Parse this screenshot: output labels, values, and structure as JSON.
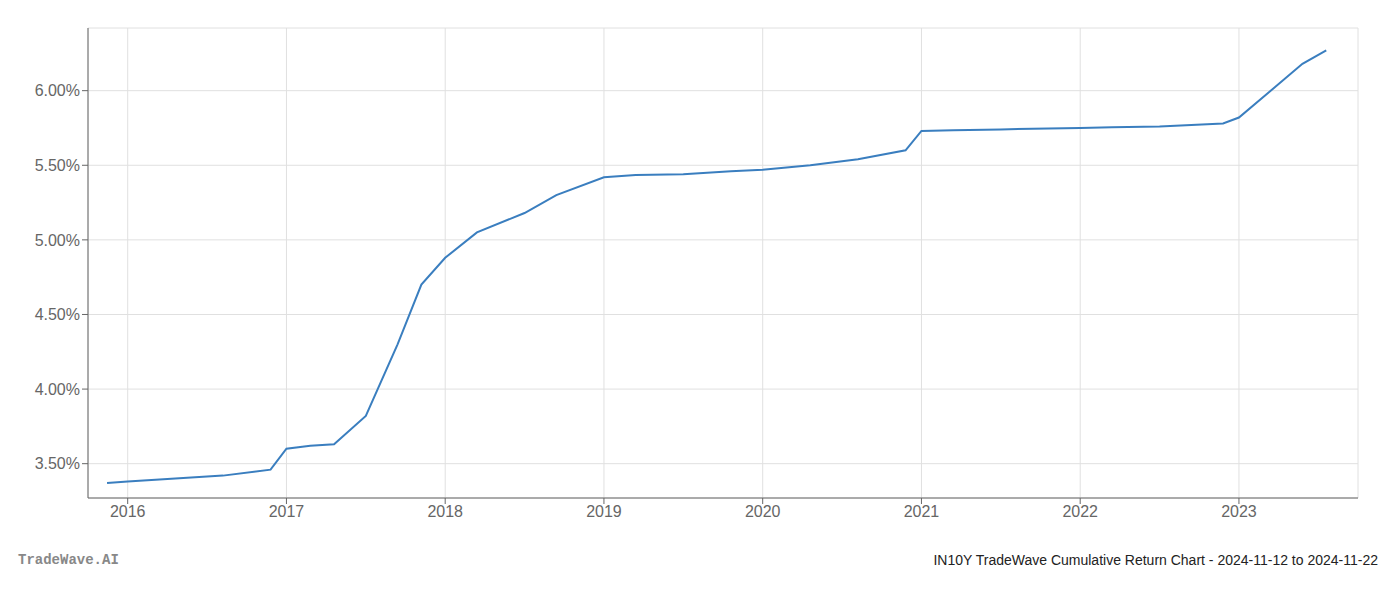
{
  "chart_data": {
    "type": "line",
    "x": [
      2015.87,
      2016.0,
      2016.3,
      2016.6,
      2016.9,
      2017.0,
      2017.15,
      2017.3,
      2017.5,
      2017.7,
      2017.85,
      2018.0,
      2018.2,
      2018.5,
      2018.7,
      2019.0,
      2019.2,
      2019.5,
      2019.8,
      2020.0,
      2020.3,
      2020.6,
      2020.9,
      2021.0,
      2021.2,
      2021.5,
      2021.7,
      2022.0,
      2022.2,
      2022.5,
      2022.7,
      2022.9,
      2023.0,
      2023.2,
      2023.4,
      2023.55
    ],
    "values": [
      3.37,
      3.38,
      3.4,
      3.42,
      3.46,
      3.6,
      3.62,
      3.63,
      3.82,
      4.3,
      4.7,
      4.88,
      5.05,
      5.18,
      5.3,
      5.42,
      5.435,
      5.44,
      5.46,
      5.47,
      5.5,
      5.54,
      5.6,
      5.73,
      5.735,
      5.74,
      5.745,
      5.75,
      5.755,
      5.76,
      5.77,
      5.78,
      5.82,
      6.0,
      6.18,
      6.27
    ],
    "color": "#3a7ebf",
    "xlim": [
      2015.75,
      2023.75
    ],
    "ylim": [
      3.27,
      6.42
    ],
    "xticks": [
      2016,
      2017,
      2018,
      2019,
      2020,
      2021,
      2022,
      2023
    ],
    "yticks": [
      {
        "value": 3.5,
        "label": "3.50%"
      },
      {
        "value": 4.0,
        "label": "4.00%"
      },
      {
        "value": 4.5,
        "label": "4.50%"
      },
      {
        "value": 5.0,
        "label": "5.00%"
      },
      {
        "value": 5.5,
        "label": "5.50%"
      },
      {
        "value": 6.0,
        "label": "6.00%"
      }
    ],
    "grid": true,
    "annotations": [
      "TradeWave.AI",
      "IN10Y TradeWave Cumulative Return Chart - 2024-11-12 to 2024-11-22"
    ]
  }
}
